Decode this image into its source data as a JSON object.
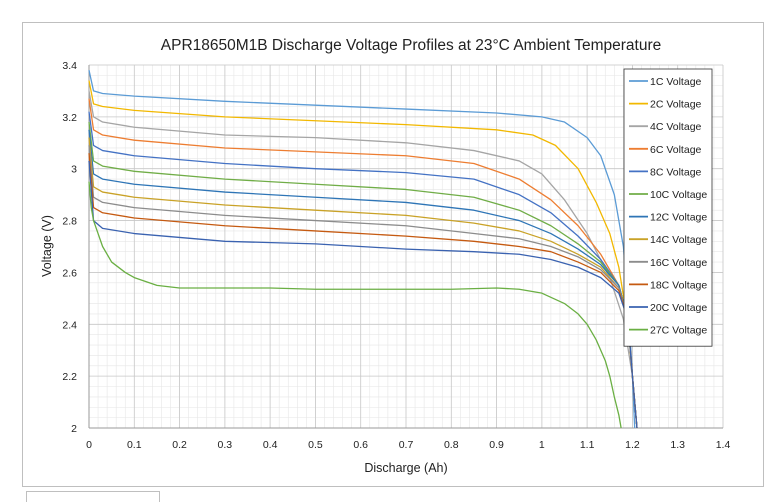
{
  "chart_data": {
    "type": "line",
    "title": "APR18650M1B Discharge Voltage Profiles at 23°C Ambient Temperature",
    "xlabel": "Discharge (Ah)",
    "ylabel": "Voltage (V)",
    "xlim": [
      0,
      1.4
    ],
    "ylim": [
      2,
      3.4
    ],
    "x_ticks": [
      "0",
      "0.1",
      "0.2",
      "0.3",
      "0.4",
      "0.5",
      "0.6",
      "0.7",
      "0.8",
      "0.9",
      "1",
      "1.1",
      "1.2",
      "1.3",
      "1.4"
    ],
    "y_ticks": [
      "2",
      "2.2",
      "2.4",
      "2.6",
      "2.8",
      "3",
      "3.2",
      "3.4"
    ],
    "grid": true,
    "legend_position": "top-right",
    "series": [
      {
        "name": "1C Voltage",
        "color": "#5B9BD5",
        "x": [
          0,
          0.01,
          0.03,
          0.1,
          0.3,
          0.5,
          0.7,
          0.9,
          1.0,
          1.05,
          1.1,
          1.13,
          1.16,
          1.18,
          1.19,
          1.2,
          1.205
        ],
        "y": [
          3.38,
          3.3,
          3.29,
          3.28,
          3.26,
          3.245,
          3.23,
          3.215,
          3.2,
          3.18,
          3.12,
          3.05,
          2.9,
          2.7,
          2.5,
          2.2,
          2.0
        ]
      },
      {
        "name": "2C Voltage",
        "color": "#F2B800",
        "x": [
          0,
          0.01,
          0.03,
          0.1,
          0.3,
          0.5,
          0.7,
          0.9,
          0.98,
          1.03,
          1.08,
          1.12,
          1.15,
          1.17,
          1.19,
          1.2,
          1.21
        ],
        "y": [
          3.34,
          3.25,
          3.24,
          3.225,
          3.2,
          3.185,
          3.17,
          3.15,
          3.13,
          3.09,
          3.0,
          2.87,
          2.75,
          2.62,
          2.4,
          2.2,
          2.0
        ]
      },
      {
        "name": "4C Voltage",
        "color": "#A5A5A5",
        "x": [
          0,
          0.01,
          0.03,
          0.1,
          0.3,
          0.5,
          0.7,
          0.85,
          0.95,
          1.0,
          1.05,
          1.1,
          1.15,
          1.18,
          1.2,
          1.21
        ],
        "y": [
          3.3,
          3.2,
          3.18,
          3.16,
          3.13,
          3.12,
          3.1,
          3.07,
          3.03,
          2.98,
          2.88,
          2.75,
          2.58,
          2.42,
          2.2,
          2.0
        ]
      },
      {
        "name": "6C Voltage",
        "color": "#ED7D31",
        "x": [
          0,
          0.01,
          0.03,
          0.1,
          0.3,
          0.5,
          0.7,
          0.85,
          0.95,
          1.02,
          1.08,
          1.13,
          1.17,
          1.19,
          1.2,
          1.21
        ],
        "y": [
          3.27,
          3.15,
          3.13,
          3.11,
          3.08,
          3.065,
          3.05,
          3.02,
          2.96,
          2.88,
          2.78,
          2.67,
          2.55,
          2.42,
          2.2,
          2.0
        ]
      },
      {
        "name": "8C Voltage",
        "color": "#4472C4",
        "x": [
          0,
          0.01,
          0.03,
          0.1,
          0.3,
          0.5,
          0.7,
          0.85,
          0.95,
          1.02,
          1.08,
          1.13,
          1.17,
          1.19,
          1.2,
          1.21
        ],
        "y": [
          3.22,
          3.09,
          3.07,
          3.05,
          3.02,
          3.0,
          2.985,
          2.96,
          2.9,
          2.83,
          2.74,
          2.65,
          2.55,
          2.42,
          2.2,
          2.0
        ]
      },
      {
        "name": "10C Voltage",
        "color": "#70AD47",
        "x": [
          0,
          0.01,
          0.03,
          0.1,
          0.3,
          0.5,
          0.7,
          0.85,
          0.95,
          1.02,
          1.08,
          1.13,
          1.17,
          1.19,
          1.2,
          1.21
        ],
        "y": [
          3.18,
          3.03,
          3.01,
          2.99,
          2.96,
          2.94,
          2.92,
          2.89,
          2.84,
          2.78,
          2.71,
          2.64,
          2.55,
          2.42,
          2.2,
          2.0
        ]
      },
      {
        "name": "12C Voltage",
        "color": "#2E75B6",
        "x": [
          0,
          0.01,
          0.03,
          0.1,
          0.3,
          0.5,
          0.7,
          0.85,
          0.95,
          1.02,
          1.08,
          1.13,
          1.17,
          1.19,
          1.2,
          1.21
        ],
        "y": [
          3.15,
          2.98,
          2.96,
          2.94,
          2.91,
          2.89,
          2.87,
          2.84,
          2.8,
          2.75,
          2.69,
          2.63,
          2.55,
          2.42,
          2.2,
          2.0
        ]
      },
      {
        "name": "14C Voltage",
        "color": "#C9A227",
        "x": [
          0,
          0.01,
          0.03,
          0.1,
          0.3,
          0.5,
          0.7,
          0.85,
          0.95,
          1.02,
          1.08,
          1.13,
          1.17,
          1.19,
          1.2,
          1.21
        ],
        "y": [
          3.12,
          2.93,
          2.91,
          2.89,
          2.86,
          2.84,
          2.82,
          2.79,
          2.76,
          2.72,
          2.67,
          2.62,
          2.54,
          2.42,
          2.2,
          2.0
        ]
      },
      {
        "name": "16C Voltage",
        "color": "#8C8C8C",
        "x": [
          0,
          0.01,
          0.03,
          0.1,
          0.3,
          0.5,
          0.7,
          0.85,
          0.95,
          1.02,
          1.08,
          1.13,
          1.17,
          1.19,
          1.2,
          1.21
        ],
        "y": [
          3.09,
          2.89,
          2.87,
          2.85,
          2.82,
          2.8,
          2.78,
          2.75,
          2.73,
          2.7,
          2.66,
          2.61,
          2.54,
          2.42,
          2.2,
          2.0
        ]
      },
      {
        "name": "18C Voltage",
        "color": "#C55A11",
        "x": [
          0,
          0.01,
          0.03,
          0.1,
          0.3,
          0.5,
          0.7,
          0.85,
          0.95,
          1.02,
          1.08,
          1.13,
          1.17,
          1.19,
          1.2,
          1.21
        ],
        "y": [
          3.06,
          2.85,
          2.83,
          2.81,
          2.78,
          2.76,
          2.74,
          2.72,
          2.7,
          2.68,
          2.64,
          2.6,
          2.53,
          2.42,
          2.2,
          2.0
        ]
      },
      {
        "name": "20C Voltage",
        "color": "#3A62B0",
        "x": [
          0,
          0.01,
          0.03,
          0.1,
          0.3,
          0.5,
          0.7,
          0.85,
          0.95,
          1.02,
          1.08,
          1.13,
          1.17,
          1.19,
          1.2,
          1.21
        ],
        "y": [
          3.03,
          2.8,
          2.77,
          2.75,
          2.72,
          2.71,
          2.69,
          2.68,
          2.67,
          2.65,
          2.62,
          2.58,
          2.52,
          2.42,
          2.2,
          2.0
        ]
      },
      {
        "name": "27C Voltage",
        "color": "#6AAF43",
        "x": [
          0,
          0.005,
          0.01,
          0.03,
          0.05,
          0.08,
          0.1,
          0.15,
          0.2,
          0.3,
          0.4,
          0.5,
          0.6,
          0.7,
          0.8,
          0.9,
          0.95,
          1.0,
          1.05,
          1.08,
          1.1,
          1.12,
          1.14,
          1.15,
          1.16,
          1.17,
          1.175
        ],
        "y": [
          2.95,
          2.85,
          2.8,
          2.7,
          2.64,
          2.6,
          2.58,
          2.55,
          2.54,
          2.54,
          2.54,
          2.535,
          2.535,
          2.535,
          2.535,
          2.54,
          2.535,
          2.52,
          2.48,
          2.44,
          2.4,
          2.34,
          2.26,
          2.2,
          2.12,
          2.05,
          2.0
        ]
      }
    ]
  }
}
